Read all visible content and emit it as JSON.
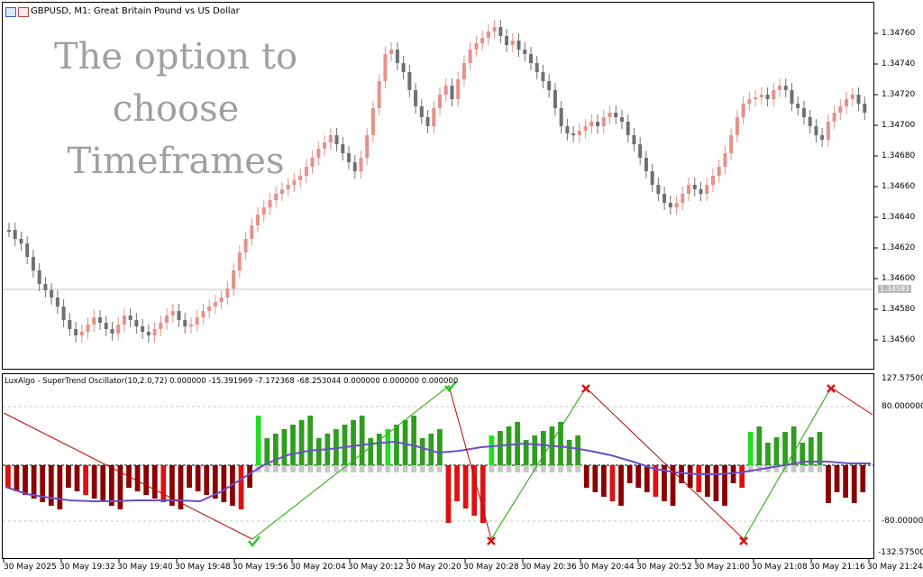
{
  "window": {
    "symbol_title": "GBPUSD, M1:  Great Britain Pound vs US Dollar",
    "overlay_text": [
      "The option to",
      "choose",
      "Timeframes"
    ]
  },
  "price_axis": {
    "labels": [
      "1.34760",
      "1.34740",
      "1.34720",
      "1.34700",
      "1.34680",
      "1.34660",
      "1.34640",
      "1.34620",
      "1.34600",
      "1.34580",
      "1.34560"
    ],
    "current_price": "1.34593"
  },
  "indicator": {
    "title": "LuxAlgo - SuperTrend Oscillator(10,2.0,72) 0.000000 -15.391969 -7.172368 -68.253044 0.000000 0.000000 0.000000",
    "axis_labels": [
      "127.575000",
      "80.000000",
      "-80.000000",
      "-132.575000"
    ]
  },
  "time_axis": {
    "labels": [
      "30 May 2025",
      "30 May 19:32",
      "30 May 19:40",
      "30 May 19:48",
      "30 May 19:56",
      "30 May 20:04",
      "30 May 20:12",
      "30 May 20:20",
      "30 May 20:28",
      "30 May 20:36",
      "30 May 20:44",
      "30 May 20:52",
      "30 May 21:00",
      "30 May 21:08",
      "30 May 21:16",
      "30 May 21:24"
    ]
  },
  "colors": {
    "bull_candle": "#e8908a",
    "bear_candle": "#6e7173",
    "osc_green": "#2f9e1e",
    "osc_lime": "#22dd22",
    "osc_red": "#e01010",
    "osc_darkred": "#8b0000",
    "signal_line": "#6a4fc8",
    "gray_hist": "#c8c8c8"
  },
  "icons": [
    "chart-window-icon-1",
    "chart-window-icon-2",
    "checkmark-signal-icon",
    "cross-signal-icon"
  ]
}
